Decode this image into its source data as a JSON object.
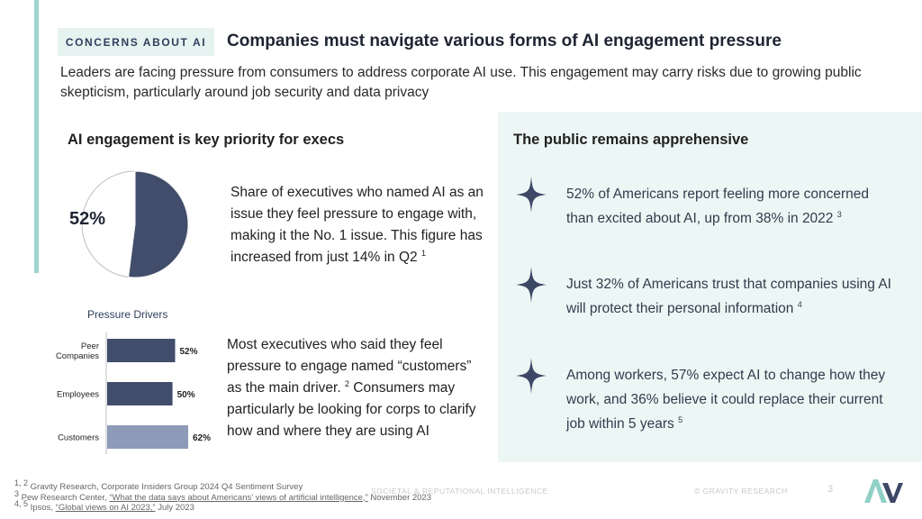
{
  "header": {
    "tag": "CONCERNS ABOUT AI",
    "title": "Companies must navigate various forms of AI engagement pressure",
    "subtitle": "Leaders are facing pressure from consumers to address corporate AI use. This engagement may carry risks due to growing public skepticism, particularly around job security and data privacy"
  },
  "left": {
    "heading": "AI engagement is key priority for execs",
    "pie": {
      "value": 52,
      "label": "52%",
      "fill_color": "#414d6a"
    },
    "pie_description": "Share of executives who named AI as an issue they feel pressure to engage with, making it the No. 1 issue. This figure has increased from just 14% in Q2",
    "pie_description_note": "1",
    "drivers_description": "Most executives who said they feel pressure to engage named “customers” as the main driver.",
    "drivers_note": "2",
    "drivers_description_2": "Consumers may particularly be looking for corps to clarify how and where they are using AI"
  },
  "chart_data": {
    "type": "bar",
    "orientation": "horizontal",
    "title": "Pressure Drivers",
    "categories": [
      "Peer Companies",
      "Employees",
      "Customers"
    ],
    "category_lines": [
      [
        "Peer",
        "Companies"
      ],
      [
        "Employees"
      ],
      [
        "Customers"
      ]
    ],
    "values": [
      52,
      50,
      62
    ],
    "value_labels": [
      "52%",
      "50%",
      "62%"
    ],
    "colors": [
      "#414d6a",
      "#414d6a",
      "#8d9ab8"
    ]
  },
  "right": {
    "heading": "The public remains apprehensive",
    "bullets": [
      {
        "text": "52% of Americans report feeling more concerned than excited about AI, up from 38% in 2022",
        "note": "3"
      },
      {
        "text": "Just 32% of Americans trust that companies using AI will protect their personal information",
        "note": "4"
      },
      {
        "text": "Among workers, 57% expect AI to change how they work, and 36% believe it could replace their current job within 5 years",
        "note": "5"
      }
    ]
  },
  "footer": {
    "note1_sup": "1, 2",
    "note1": "Gravity Research, Corporate Insiders Group 2024 Q4 Sentiment Survey",
    "note2_sup": "3",
    "note2_pre": "Pew Research Center, ",
    "note2_link": "“What the data says about Americans’ views of artificial intelligence,”",
    "note2_post": " November 2023",
    "note3_sup": "4, 5",
    "note3_pre": "Ipsos, ",
    "note3_link": "“Global views on AI 2023,”",
    "note3_post": " July 2023",
    "center": "SOCIETAL & REPUTATIONAL INTELLIGENCE",
    "copyright": "© GRAVITY RESEARCH",
    "page": "3"
  }
}
